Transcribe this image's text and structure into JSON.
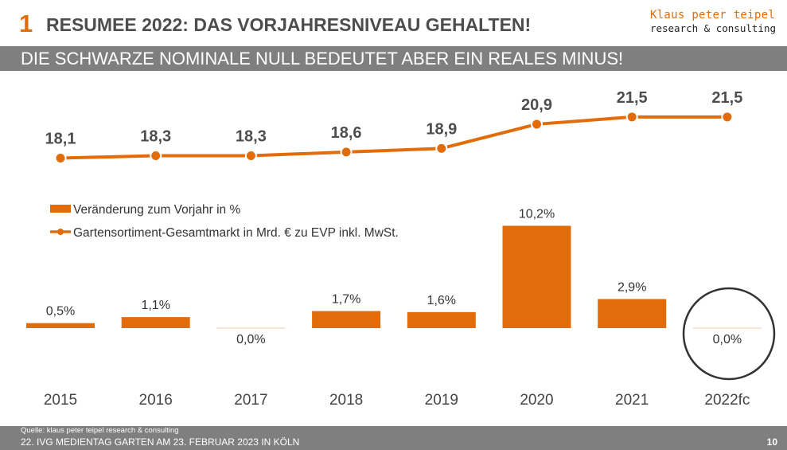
{
  "header": {
    "slide_number": "1",
    "headline": "RESUMEE 2022: DAS VORJAHRESNIVEAU GEHALTEN!",
    "subheadline": "DIE SCHWARZE NOMINALE NULL BEDEUTET ABER EIN REALES MINUS!"
  },
  "brand": {
    "name": "Klaus peter teipel",
    "tagline": "research & consulting"
  },
  "colors": {
    "accent": "#e36c0a",
    "grey_band": "#7f7f7f",
    "headline_text": "#4d4d4d"
  },
  "chart_data": {
    "type": "bar",
    "categories": [
      "2015",
      "2016",
      "2017",
      "2018",
      "2019",
      "2020",
      "2021",
      "2022fc"
    ],
    "series": [
      {
        "name": "Veränderung zum Vorjahr in %",
        "type": "bar",
        "values": [
          0.5,
          1.1,
          0.0,
          1.7,
          1.6,
          10.2,
          2.9,
          0.0
        ],
        "labels": [
          "0,5%",
          "1,1%",
          "0,0%",
          "1,7%",
          "1,6%",
          "10,2%",
          "2,9%",
          "0,0%"
        ]
      },
      {
        "name": "Gartensortiment-Gesamtmarkt in Mrd. € zu EVP inkl. MwSt.",
        "type": "line",
        "values": [
          18.1,
          18.3,
          18.3,
          18.6,
          18.9,
          20.9,
          21.5,
          21.5
        ],
        "labels": [
          "18,1",
          "18,3",
          "18,3",
          "18,6",
          "18,9",
          "20,9",
          "21,5",
          "21,5"
        ]
      }
    ],
    "legend_position": "middle-left",
    "highlight": "circle around 2022fc bar"
  },
  "footer": {
    "source": "Quelle: klaus peter teipel research & consulting",
    "event": "22. IVG MEDIENTAG GARTEN AM 23. FEBRUAR 2023 IN KÖLN",
    "page": "10"
  }
}
